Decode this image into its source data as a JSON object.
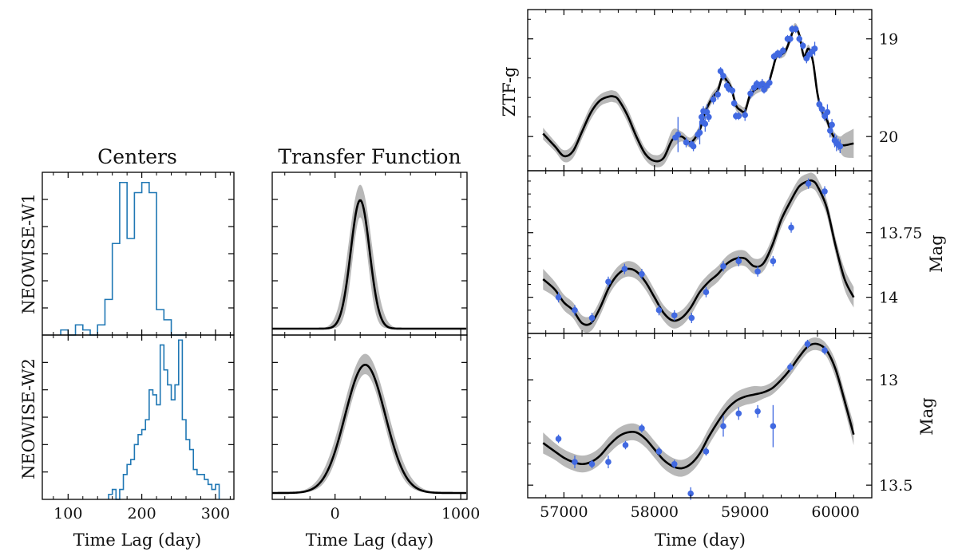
{
  "figure": {
    "col1_title": "Centers",
    "col2_title": "Transfer Function",
    "row_label_w1": "NEOWISE-W1",
    "row_label_w2": "NEOWISE-W2",
    "x_label_lag": "Time Lag (day)",
    "x_label_time": "Time (day)",
    "y_label_g": "ZTF-g",
    "y_label_mag": "Mag"
  },
  "colors": {
    "histogram": "#1f77b4",
    "curve": "#000000",
    "band": "#b8b8b8",
    "points": "#4169e1",
    "axes": "#000000"
  },
  "chart_data": [
    {
      "id": "centers-w1",
      "type": "histogram",
      "xlim": [
        65,
        325
      ],
      "xticks": [
        100,
        200,
        300
      ],
      "bin_width": 10,
      "bin_starts": [
        90,
        100,
        110,
        120,
        130,
        140,
        150,
        160,
        170,
        180,
        190,
        200,
        210,
        220,
        230,
        240,
        250
      ],
      "counts": [
        1,
        0,
        2,
        1,
        0,
        2,
        7,
        18,
        30,
        19,
        28,
        30,
        28,
        5,
        3,
        0,
        0
      ],
      "ylim": [
        0,
        32
      ]
    },
    {
      "id": "centers-w2",
      "type": "histogram",
      "xlim": [
        65,
        325
      ],
      "xticks": [
        100,
        200,
        300
      ],
      "bin_width": 5,
      "bin_starts": [
        155,
        160,
        165,
        170,
        175,
        180,
        185,
        190,
        195,
        200,
        205,
        210,
        215,
        220,
        225,
        230,
        235,
        240,
        245,
        250,
        255,
        260,
        265,
        270,
        275,
        280,
        285,
        290,
        295,
        300
      ],
      "counts": [
        1,
        2,
        0,
        2,
        5,
        7,
        8,
        11,
        13,
        14,
        16,
        22,
        21,
        19,
        31,
        26,
        23,
        20,
        23,
        32,
        16,
        12,
        10,
        6,
        5,
        5,
        4,
        3,
        2,
        3
      ],
      "ylim": [
        0,
        33
      ]
    },
    {
      "id": "transfer-w1",
      "type": "line",
      "xlim": [
        -500,
        1050
      ],
      "xticks": [
        0,
        1000
      ],
      "ylim": [
        0,
        1
      ],
      "gaussian": {
        "peak_lag": 200,
        "sigma": 75,
        "amplitude": 0.83
      },
      "band": {
        "upper_amplitude": 0.93,
        "upper_sigma": 90,
        "lower_amplitude": 0.72,
        "lower_sigma": 62
      }
    },
    {
      "id": "transfer-w2",
      "type": "line",
      "xlim": [
        -500,
        1050
      ],
      "xticks": [
        0,
        1000
      ],
      "ylim": [
        0,
        1
      ],
      "gaussian": {
        "peak_lag": 240,
        "sigma": 160,
        "amplitude": 0.82
      },
      "band": {
        "upper_amplitude": 0.89,
        "upper_sigma": 175,
        "lower_amplitude": 0.76,
        "lower_sigma": 148
      }
    },
    {
      "id": "lc-ztf-g",
      "type": "line",
      "series_name": "ZTF-g",
      "xlim": [
        56600,
        60400
      ],
      "ylim": [
        20.35,
        18.7
      ],
      "y_inverted": true,
      "yticks": [
        19,
        20
      ],
      "model_x": [
        56770,
        56900,
        57000,
        57100,
        57200,
        57300,
        57400,
        57500,
        57550,
        57600,
        57700,
        57800,
        57900,
        58000,
        58100,
        58200,
        58300,
        58400,
        58500,
        58560,
        58640,
        58700,
        58750,
        58800,
        58850,
        58900,
        58950,
        59000,
        59050,
        59100,
        59150,
        59200,
        59250,
        59300,
        59350,
        59400,
        59450,
        59500,
        59550,
        59600,
        59650,
        59700,
        59750,
        59800,
        59850,
        59900,
        59950,
        60000,
        60050,
        60100,
        60200
      ],
      "model_y": [
        19.97,
        20.1,
        20.2,
        20.15,
        19.95,
        19.75,
        19.63,
        19.59,
        19.59,
        19.62,
        19.78,
        20.0,
        20.18,
        20.25,
        20.22,
        20.03,
        20.0,
        20.06,
        19.93,
        19.75,
        19.6,
        19.53,
        19.39,
        19.43,
        19.51,
        19.68,
        19.73,
        19.74,
        19.59,
        19.53,
        19.5,
        19.48,
        19.48,
        19.33,
        19.17,
        19.16,
        19.12,
        19.0,
        18.88,
        18.96,
        19.18,
        19.1,
        19.23,
        19.56,
        19.75,
        19.82,
        19.95,
        20.03,
        20.08,
        20.09,
        20.07
      ],
      "band_width": [
        0.06,
        0.05,
        0.06,
        0.07,
        0.07,
        0.07,
        0.06,
        0.06,
        0.06,
        0.06,
        0.07,
        0.07,
        0.06,
        0.06,
        0.07,
        0.1,
        0.05,
        0.05,
        0.05,
        0.05,
        0.05,
        0.05,
        0.04,
        0.05,
        0.05,
        0.05,
        0.05,
        0.05,
        0.05,
        0.05,
        0.05,
        0.05,
        0.05,
        0.04,
        0.04,
        0.04,
        0.04,
        0.04,
        0.04,
        0.04,
        0.04,
        0.04,
        0.04,
        0.04,
        0.04,
        0.05,
        0.05,
        0.06,
        0.08,
        0.12,
        0.15
      ],
      "points": {
        "x": [
          58230,
          58260,
          58350,
          58410,
          58430,
          58480,
          58500,
          58520,
          58530,
          58540,
          58560,
          58580,
          58600,
          58650,
          58700,
          58730,
          58760,
          58800,
          58820,
          58860,
          58880,
          58900,
          58930,
          59000,
          59060,
          59100,
          59130,
          59160,
          59190,
          59210,
          59240,
          59270,
          59320,
          59360,
          59380,
          59420,
          59470,
          59500,
          59520,
          59560,
          59600,
          59640,
          59680,
          59710,
          59740,
          59770,
          59820,
          59850,
          59880,
          59910,
          59940,
          59960,
          59990,
          60010,
          60030,
          60050
        ],
        "y": [
          20.01,
          19.98,
          20.06,
          20.08,
          20.1,
          19.98,
          19.96,
          19.8,
          19.85,
          19.74,
          19.87,
          19.75,
          19.8,
          19.62,
          19.57,
          19.33,
          19.38,
          19.48,
          19.51,
          19.53,
          19.66,
          19.79,
          19.79,
          19.78,
          19.56,
          19.5,
          19.46,
          19.48,
          19.46,
          19.52,
          19.48,
          19.45,
          19.18,
          19.15,
          19.16,
          19.12,
          19.0,
          19.0,
          18.9,
          18.9,
          19.0,
          19.07,
          19.2,
          19.16,
          19.13,
          19.1,
          19.67,
          19.72,
          19.79,
          19.75,
          19.94,
          19.88,
          20.04,
          20.07,
          20.08,
          20.1
        ],
        "err": [
          0.03,
          0.18,
          0.05,
          0.04,
          0.05,
          0.05,
          0.12,
          0.05,
          0.04,
          0.05,
          0.08,
          0.08,
          0.05,
          0.05,
          0.05,
          0.04,
          0.04,
          0.05,
          0.04,
          0.04,
          0.04,
          0.04,
          0.04,
          0.06,
          0.05,
          0.05,
          0.04,
          0.04,
          0.05,
          0.04,
          0.04,
          0.05,
          0.04,
          0.04,
          0.04,
          0.04,
          0.04,
          0.04,
          0.04,
          0.04,
          0.04,
          0.04,
          0.05,
          0.04,
          0.05,
          0.07,
          0.05,
          0.05,
          0.05,
          0.08,
          0.07,
          0.06,
          0.07,
          0.08,
          0.06,
          0.07
        ]
      }
    },
    {
      "id": "lc-w1",
      "type": "line",
      "series_name": "NEOWISE-W1",
      "xlim": [
        56600,
        60400
      ],
      "ylim": [
        14.14,
        13.51
      ],
      "y_inverted": true,
      "yticks": [
        13.75,
        14.0
      ],
      "ylabel": "Mag",
      "model_x": [
        56770,
        56900,
        57000,
        57100,
        57200,
        57300,
        57400,
        57500,
        57600,
        57700,
        57800,
        57900,
        58000,
        58100,
        58200,
        58300,
        58400,
        58500,
        58600,
        58700,
        58800,
        58900,
        59000,
        59100,
        59200,
        59300,
        59400,
        59500,
        59600,
        59700,
        59750,
        59800,
        59900,
        60000,
        60100,
        60200
      ],
      "model_y": [
        13.93,
        13.97,
        14.02,
        14.05,
        14.1,
        14.1,
        14.04,
        13.96,
        13.91,
        13.89,
        13.9,
        13.94,
        14.0,
        14.06,
        14.09,
        14.08,
        14.04,
        13.98,
        13.94,
        13.91,
        13.87,
        13.85,
        13.85,
        13.88,
        13.87,
        13.8,
        13.7,
        13.63,
        13.57,
        13.55,
        13.55,
        13.57,
        13.65,
        13.8,
        13.93,
        14.0
      ],
      "band_width": [
        0.04,
        0.03,
        0.03,
        0.03,
        0.03,
        0.03,
        0.03,
        0.03,
        0.03,
        0.03,
        0.03,
        0.03,
        0.03,
        0.03,
        0.03,
        0.03,
        0.03,
        0.03,
        0.03,
        0.03,
        0.03,
        0.03,
        0.03,
        0.03,
        0.03,
        0.03,
        0.03,
        0.03,
        0.03,
        0.03,
        0.03,
        0.03,
        0.03,
        0.03,
        0.04,
        0.04
      ],
      "points": {
        "x": [
          56940,
          57120,
          57310,
          57490,
          57670,
          57860,
          58050,
          58220,
          58410,
          58570,
          58760,
          58930,
          59140,
          59310,
          59510,
          59700,
          59880
        ],
        "y": [
          14.0,
          14.05,
          14.08,
          13.94,
          13.89,
          13.91,
          14.05,
          14.07,
          14.08,
          13.98,
          13.88,
          13.86,
          13.9,
          13.86,
          13.73,
          13.56,
          13.59
        ],
        "err": [
          0.02,
          0.02,
          0.02,
          0.02,
          0.02,
          0.02,
          0.02,
          0.02,
          0.02,
          0.02,
          0.02,
          0.02,
          0.02,
          0.02,
          0.02,
          0.02,
          0.02
        ]
      }
    },
    {
      "id": "lc-w2",
      "type": "line",
      "series_name": "NEOWISE-W2",
      "xlim": [
        56600,
        60400
      ],
      "ylim": [
        13.56,
        12.78
      ],
      "y_inverted": true,
      "yticks": [
        13.0,
        13.5
      ],
      "ylabel": "Mag",
      "model_x": [
        56770,
        56900,
        57000,
        57100,
        57200,
        57300,
        57400,
        57500,
        57600,
        57700,
        57800,
        57900,
        58000,
        58100,
        58200,
        58300,
        58400,
        58500,
        58600,
        58700,
        58800,
        58900,
        59000,
        59100,
        59200,
        59300,
        59400,
        59500,
        59600,
        59700,
        59800,
        59900,
        60000,
        60100,
        60200
      ],
      "model_y": [
        13.3,
        13.34,
        13.37,
        13.39,
        13.4,
        13.39,
        13.36,
        13.31,
        13.27,
        13.25,
        13.25,
        13.28,
        13.33,
        13.38,
        13.41,
        13.42,
        13.4,
        13.35,
        13.27,
        13.2,
        13.14,
        13.1,
        13.08,
        13.07,
        13.06,
        13.04,
        13.0,
        12.95,
        12.89,
        12.84,
        12.83,
        12.86,
        12.95,
        13.1,
        13.26
      ],
      "band_width": [
        0.05,
        0.04,
        0.04,
        0.04,
        0.04,
        0.04,
        0.04,
        0.04,
        0.04,
        0.04,
        0.04,
        0.04,
        0.04,
        0.04,
        0.04,
        0.04,
        0.04,
        0.04,
        0.04,
        0.04,
        0.04,
        0.04,
        0.04,
        0.04,
        0.03,
        0.03,
        0.03,
        0.03,
        0.03,
        0.03,
        0.03,
        0.03,
        0.04,
        0.04,
        0.05
      ],
      "points": {
        "x": [
          56940,
          57120,
          57310,
          57490,
          57680,
          57860,
          58050,
          58220,
          58400,
          58570,
          58760,
          58930,
          59140,
          59310,
          59500,
          59690,
          59880
        ],
        "y": [
          13.28,
          13.39,
          13.4,
          13.39,
          13.31,
          13.23,
          13.34,
          13.4,
          13.54,
          13.34,
          13.22,
          13.16,
          13.15,
          13.22,
          12.94,
          12.83,
          12.86
        ],
        "err": [
          0.02,
          0.03,
          0.02,
          0.03,
          0.02,
          0.02,
          0.02,
          0.02,
          0.03,
          0.02,
          0.05,
          0.03,
          0.03,
          0.1,
          0.02,
          0.02,
          0.02
        ]
      }
    }
  ],
  "time_axis": {
    "xticks": [
      57000,
      58000,
      59000,
      60000
    ]
  }
}
